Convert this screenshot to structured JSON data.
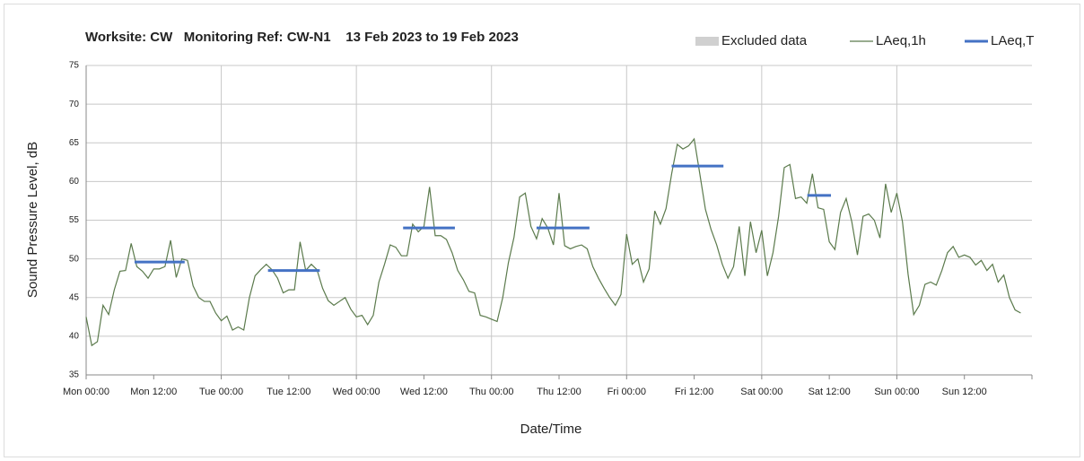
{
  "chart_data": {
    "type": "line",
    "title": "Worksite: CW   Monitoring Ref: CW-N1    13 Feb 2023 to 19 Feb 2023",
    "x_label": "Date/Time",
    "y_label": "Sound Pressure Level, dB",
    "xlim": [
      0,
      168
    ],
    "xticks": [
      {
        "value": 0,
        "label": "Mon 00:00"
      },
      {
        "value": 12,
        "label": "Mon 12:00"
      },
      {
        "value": 24,
        "label": "Tue 00:00"
      },
      {
        "value": 36,
        "label": "Tue 12:00"
      },
      {
        "value": 48,
        "label": "Wed 00:00"
      },
      {
        "value": 60,
        "label": "Wed 12:00"
      },
      {
        "value": 72,
        "label": "Thu 00:00"
      },
      {
        "value": 84,
        "label": "Thu 12:00"
      },
      {
        "value": 96,
        "label": "Fri 00:00"
      },
      {
        "value": 108,
        "label": "Fri 12:00"
      },
      {
        "value": 120,
        "label": "Sat 00:00"
      },
      {
        "value": 132,
        "label": "Sat 12:00"
      },
      {
        "value": 144,
        "label": "Sun 00:00"
      },
      {
        "value": 156,
        "label": "Sun 12:00"
      }
    ],
    "ylim": [
      35,
      75
    ],
    "yticks": [
      35,
      40,
      45,
      50,
      55,
      60,
      65,
      70,
      75
    ],
    "grid": true,
    "legend": "top-right",
    "series": [
      {
        "name": "Excluded data",
        "color": "#d0d0d0",
        "values": []
      },
      {
        "name": "LAeq,1h",
        "color": "#5b7a4c",
        "x": [
          0,
          1,
          2,
          3,
          4,
          5,
          6,
          7,
          8,
          9,
          10,
          11,
          12,
          13,
          14,
          15,
          16,
          17,
          18,
          19,
          20,
          21,
          22,
          23,
          24,
          25,
          26,
          27,
          28,
          29,
          30,
          31,
          32,
          33,
          34,
          35,
          36,
          37,
          38,
          39,
          40,
          41,
          42,
          43,
          44,
          45,
          46,
          47,
          48,
          49,
          50,
          51,
          52,
          53,
          54,
          55,
          56,
          57,
          58,
          59,
          60,
          61,
          62,
          63,
          64,
          65,
          66,
          67,
          68,
          69,
          70,
          71,
          72,
          73,
          74,
          75,
          76,
          77,
          78,
          79,
          80,
          81,
          82,
          83,
          84,
          85,
          86,
          87,
          88,
          89,
          90,
          91,
          92,
          93,
          94,
          95,
          96,
          97,
          98,
          99,
          100,
          101,
          102,
          103,
          104,
          105,
          106,
          107,
          108,
          109,
          110,
          111,
          112,
          113,
          114,
          115,
          116,
          117,
          118,
          119,
          120,
          121,
          122,
          123,
          124,
          125,
          126,
          127,
          128,
          129,
          130,
          131,
          132,
          133,
          134,
          135,
          136,
          137,
          138,
          139,
          140,
          141,
          142,
          143,
          144,
          145,
          146,
          147,
          148,
          149,
          150,
          151,
          152,
          153,
          154,
          155,
          156,
          157,
          158,
          159,
          160,
          161,
          162,
          163,
          164,
          165,
          166
        ],
        "values": [
          42.5,
          38.8,
          39.3,
          44,
          42.8,
          46,
          48.4,
          48.5,
          52,
          49,
          48.4,
          47.5,
          48.7,
          48.7,
          49,
          52.4,
          47.6,
          50,
          49.8,
          46.5,
          45,
          44.5,
          44.5,
          43,
          42,
          42.6,
          40.8,
          41.2,
          40.8,
          45,
          47.8,
          48.6,
          49.3,
          48.6,
          47.5,
          45.6,
          46,
          46,
          52.2,
          48.5,
          49.3,
          48.6,
          46.2,
          44.6,
          44,
          44.5,
          45,
          43.5,
          42.5,
          42.7,
          41.5,
          42.7,
          47,
          49.3,
          51.8,
          51.5,
          50.4,
          50.4,
          54.5,
          53.5,
          54.2,
          59.3,
          53,
          53,
          52.5,
          50.8,
          48.5,
          47.3,
          45.8,
          45.6,
          42.7,
          42.5,
          42.2,
          41.9,
          45,
          49.5,
          52.8,
          58,
          58.5,
          54.2,
          52.6,
          55.2,
          54,
          51.8,
          58.5,
          51.7,
          51.3,
          51.6,
          51.8,
          51.3,
          49,
          47.5,
          46.2,
          45,
          44,
          45.4,
          53.2,
          49.3,
          50,
          47,
          48.7,
          56.2,
          54.5,
          56.5,
          61,
          64.8,
          64.2,
          64.6,
          65.5,
          61,
          56.4,
          53.8,
          51.8,
          49.3,
          47.5,
          49,
          54.2,
          47.8,
          54.8,
          50.8,
          53.7,
          47.8,
          50.8,
          55.5,
          61.8,
          62.2,
          57.8,
          58,
          57.2,
          61,
          56.6,
          56.4,
          52.2,
          51.2,
          56,
          57.8,
          54.8,
          50.5,
          55.5,
          55.8,
          55,
          52.7,
          59.7,
          56,
          58.5,
          54.8,
          48,
          42.8,
          44,
          46.7,
          47,
          46.6,
          48.5,
          50.8,
          51.6,
          50.2,
          50.5,
          50.2,
          49.2,
          49.8,
          48.5,
          49.3,
          47,
          47.9,
          45,
          43.4,
          43
        ]
      },
      {
        "name": "LAeq,T",
        "color": "#4472c4",
        "segments": [
          {
            "start": 8.6,
            "end": 17.5,
            "value": 49.6
          },
          {
            "start": 32.3,
            "end": 41.5,
            "value": 48.5
          },
          {
            "start": 56.3,
            "end": 65.5,
            "value": 54
          },
          {
            "start": 80,
            "end": 89.4,
            "value": 54
          },
          {
            "start": 104,
            "end": 113.2,
            "value": 62
          },
          {
            "start": 128.1,
            "end": 132.3,
            "value": 58.2
          }
        ]
      }
    ]
  }
}
